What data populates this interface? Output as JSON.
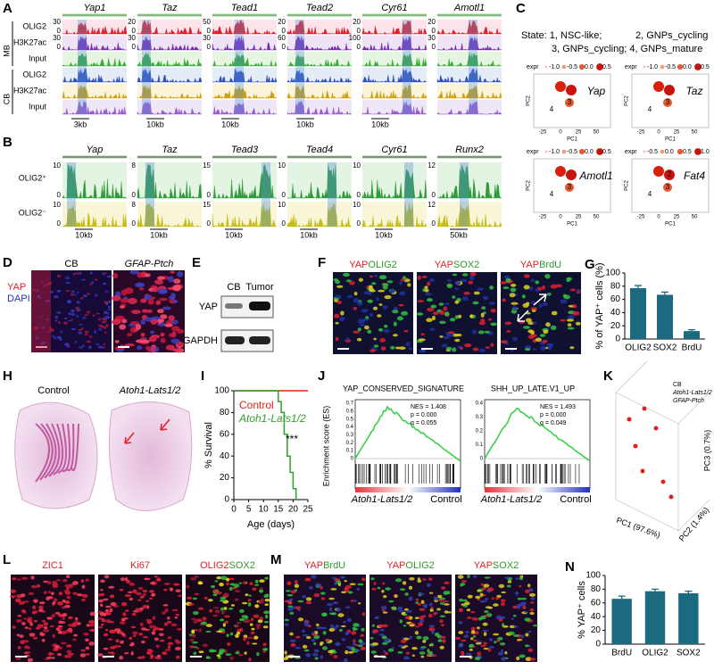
{
  "panels": {
    "A": {
      "label": "A",
      "genes": [
        "Yap1",
        "Taz",
        "Tead1",
        "Tead2",
        "Cyr61",
        "Amotl1"
      ],
      "group_labels": [
        "MB",
        "CB"
      ],
      "tracks": [
        "OLIG2",
        "H3K27ac",
        "Input",
        "OLIG2",
        "H3K27ac",
        "Input"
      ],
      "scales": [
        [
          "30",
          "30"
        ],
        [
          "20",
          "30"
        ],
        [
          "50",
          "30"
        ],
        [
          "20",
          "60"
        ],
        [
          "20",
          "100"
        ],
        [
          "20",
          "30"
        ]
      ],
      "zero": "0",
      "scale_bars": [
        "3kb",
        "10kb",
        "10kb",
        "10kb",
        "10kb"
      ]
    },
    "B": {
      "label": "B",
      "genes": [
        "Yap",
        "Taz",
        "Tead3",
        "Tead4",
        "Cyr61",
        "Runx2"
      ],
      "tracks": [
        "OLIG2⁺",
        "OLIG2⁻"
      ],
      "scales": [
        [
          "10",
          "10"
        ],
        [
          "8",
          "8"
        ],
        [
          "15",
          "15"
        ],
        [
          "10",
          "10"
        ],
        [
          "10",
          "10"
        ],
        [
          "12",
          "12"
        ]
      ],
      "zero": "0",
      "scale_bars": [
        "10kb",
        "10kb",
        "10kb",
        "10kb",
        "10kb",
        "50kb"
      ]
    },
    "C": {
      "label": "C",
      "state_lines": [
        "State: 1, NSC-like;",
        "2, GNPs_cycling",
        "3, GNPs_cycling; 4, GNPs_mature"
      ],
      "plots": [
        {
          "gene": "Yap",
          "legend_title": "expr",
          "legend": [
            "-1.0",
            "-0.5",
            "0.0",
            "0.5"
          ],
          "points": [
            "3",
            "4"
          ]
        },
        {
          "gene": "Taz",
          "legend_title": "expr",
          "legend": [
            "-1.0",
            "-0.5",
            "0.0",
            "0.5"
          ],
          "points": [
            "3",
            "4"
          ]
        },
        {
          "gene": "Amotl1",
          "legend_title": "expr",
          "legend": [
            "-1.0",
            "-0.5",
            "0.0",
            "0.5"
          ],
          "points": [
            "3",
            "4"
          ]
        },
        {
          "gene": "Fat4",
          "legend_title": "expr",
          "legend": [
            "-0.5",
            "0.0",
            "0.5",
            "1.0"
          ],
          "points": [
            "2",
            "3",
            "4"
          ]
        }
      ],
      "xlabel": "PC1",
      "ylabel": "PC2",
      "xticks": [
        "-25",
        "0",
        "25",
        "50"
      ]
    },
    "D": {
      "label": "D",
      "titles": [
        "CB",
        "GFAP-Ptch"
      ],
      "stains": [
        "YAP",
        "DAPI"
      ]
    },
    "E": {
      "label": "E",
      "lanes": [
        "CB",
        "Tumor"
      ],
      "proteins": [
        "YAP",
        "GAPDH"
      ]
    },
    "F": {
      "label": "F",
      "titles": [
        [
          "YAP",
          "OLIG2"
        ],
        [
          "YAP",
          "SOX2"
        ],
        [
          "YAP",
          "BrdU"
        ]
      ]
    },
    "H": {
      "label": "H",
      "titles": [
        "Control",
        "Atoh1-Lats1/2"
      ]
    },
    "J": {
      "label": "J",
      "ylabel": "Enrichment score (ES)",
      "plots": [
        {
          "title": "YAP_CONSERVED_SIGNATURE",
          "stats": [
            "NES = 1.408",
            "p = 0.000",
            "q = 0.055"
          ],
          "yticks": [
            "0.7",
            "0.6",
            "0.5",
            "0.4",
            "0.3",
            "0.2",
            "0.1",
            "0"
          ]
        },
        {
          "title": "SHH_UP_LATE.V1_UP",
          "stats": [
            "NES = 1.493",
            "p = 0.000",
            "q = 0.049"
          ],
          "yticks": [
            "0.4",
            "0.3",
            "0.2",
            "0.1",
            "0"
          ]
        }
      ],
      "group_labels": [
        "Atoh1-Lats1/2",
        "Control"
      ]
    },
    "K": {
      "label": "K",
      "legend": [
        "CB",
        "Atoh1-Lats1/2",
        "GFAP-Ptch"
      ],
      "axes": [
        "PC1 (97.6%)",
        "PC2 (1.4%)",
        "PC3 (0.7%)"
      ]
    },
    "L": {
      "label": "L",
      "titles": [
        [
          "ZIC1"
        ],
        [
          "Ki67"
        ],
        [
          "OLIG2",
          "SOX2"
        ]
      ]
    },
    "M": {
      "label": "M",
      "titles": [
        [
          "YAP",
          "BrdU"
        ],
        [
          "YAP",
          "OLIG2"
        ],
        [
          "YAP",
          "SOX2"
        ]
      ]
    }
  },
  "chart_data": [
    {
      "type": "bar",
      "label": "G",
      "ylabel": "% of YAP⁺ cells (%)",
      "categories": [
        "OLIG2",
        "SOX2",
        "BrdU"
      ],
      "values": [
        77,
        67,
        12
      ],
      "errors": [
        4,
        4,
        2
      ],
      "color": "#1b6a80",
      "ylim": [
        0,
        100
      ],
      "yticks": [
        0,
        20,
        40,
        60,
        80,
        100
      ]
    },
    {
      "type": "line",
      "label": "I",
      "ylabel": "% Survival",
      "xlabel": "Age (days)",
      "annotation": "***",
      "series": [
        {
          "name": "Control",
          "color": "#e8201c",
          "x": [
            0,
            25
          ],
          "values": [
            100,
            100
          ]
        },
        {
          "name": "Atoh1-Lats1/2",
          "color": "#2ea02e",
          "x": [
            0,
            15,
            15,
            16,
            16,
            17,
            17,
            18,
            18,
            19,
            19,
            20,
            20,
            21,
            21
          ],
          "values": [
            100,
            100,
            90,
            90,
            80,
            80,
            60,
            60,
            40,
            40,
            25,
            25,
            10,
            10,
            0
          ]
        }
      ],
      "xlim": [
        0,
        25
      ],
      "xticks": [
        0,
        5,
        10,
        15,
        20,
        25
      ],
      "ylim": [
        0,
        100
      ],
      "yticks": [
        0,
        20,
        40,
        60,
        80,
        100
      ]
    },
    {
      "type": "bar",
      "label": "N",
      "ylabel": "% YAP⁺ cells",
      "categories": [
        "BrdU",
        "OLIG2",
        "SOX2"
      ],
      "values": [
        66,
        77,
        74
      ],
      "errors": [
        4,
        3,
        3
      ],
      "color": "#1b6a80",
      "ylim": [
        0,
        100
      ],
      "yticks": [
        0,
        20,
        40,
        60,
        80,
        100
      ]
    }
  ]
}
